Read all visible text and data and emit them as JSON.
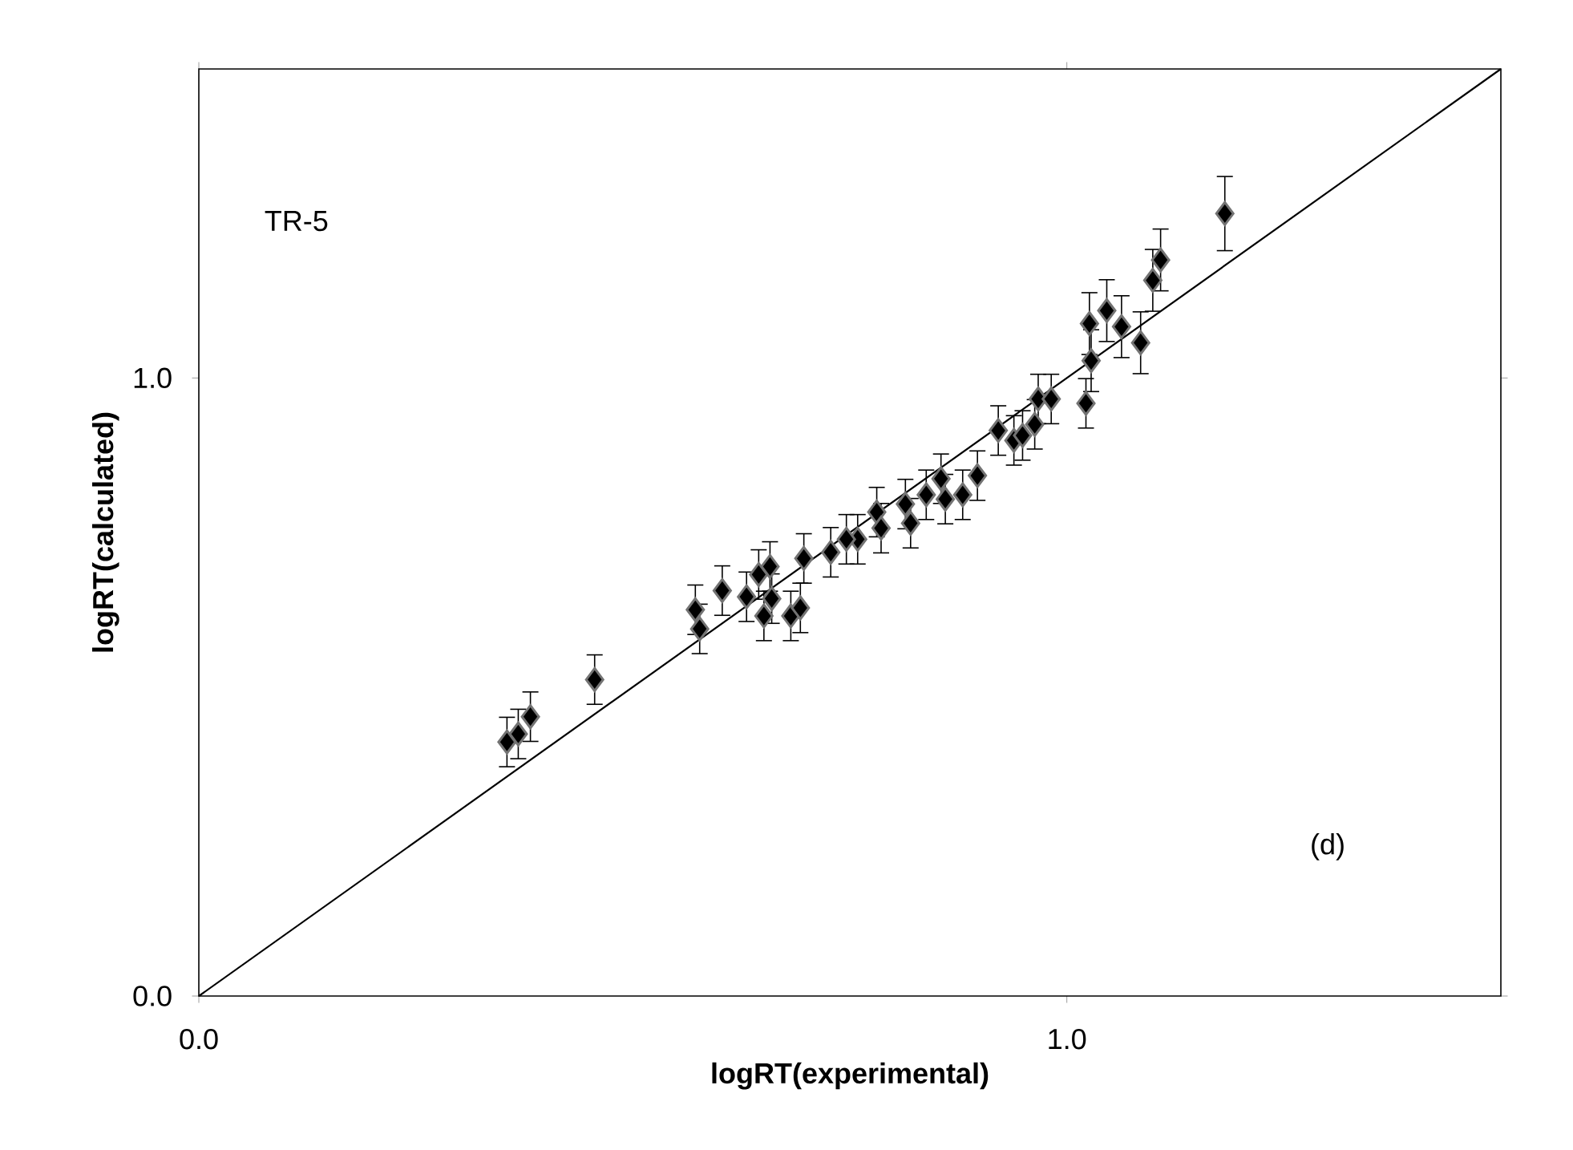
{
  "chart_data": {
    "type": "scatter",
    "xlabel": "logRT(experimental)",
    "ylabel": "logRT(calculated)",
    "annotations": [
      "TR-5",
      "(d)"
    ],
    "xlim": [
      0,
      1.5
    ],
    "ylim": [
      0,
      1.5
    ],
    "xticks": [
      {
        "value": 0,
        "label": "0.0"
      },
      {
        "value": 1,
        "label": "1.0"
      }
    ],
    "yticks": [
      {
        "value": 0,
        "label": "0.0"
      },
      {
        "value": 1,
        "label": "1.0"
      }
    ],
    "marker": "diamond",
    "series": [
      {
        "color": "#000000",
        "x": [
          0.355,
          0.368,
          0.382,
          0.456,
          0.572,
          0.577,
          0.603,
          0.631,
          0.645,
          0.658,
          0.651,
          0.66,
          0.682,
          0.693,
          0.697,
          0.728,
          0.759,
          0.746,
          0.781,
          0.786,
          0.814,
          0.82,
          0.838,
          0.855,
          0.86,
          0.88,
          0.897,
          0.921,
          0.939,
          0.949,
          0.963,
          0.967,
          0.982,
          1.022,
          1.028,
          1.026,
          1.046,
          1.063,
          1.085,
          1.099,
          1.108,
          1.182
        ],
        "values": [
          0.411,
          0.424,
          0.452,
          0.512,
          0.625,
          0.594,
          0.656,
          0.646,
          0.682,
          0.695,
          0.615,
          0.643,
          0.615,
          0.628,
          0.708,
          0.718,
          0.739,
          0.739,
          0.783,
          0.757,
          0.796,
          0.765,
          0.811,
          0.837,
          0.804,
          0.811,
          0.842,
          0.915,
          0.899,
          0.907,
          0.925,
          0.966,
          0.966,
          0.959,
          1.028,
          1.088,
          1.109,
          1.083,
          1.057,
          1.158,
          1.191,
          1.266
        ],
        "errors": [
          0.04,
          0.04,
          0.04,
          0.04,
          0.04,
          0.04,
          0.04,
          0.04,
          0.04,
          0.04,
          0.04,
          0.04,
          0.04,
          0.04,
          0.04,
          0.04,
          0.04,
          0.04,
          0.04,
          0.04,
          0.04,
          0.04,
          0.04,
          0.04,
          0.04,
          0.04,
          0.04,
          0.04,
          0.04,
          0.04,
          0.04,
          0.04,
          0.04,
          0.04,
          0.05,
          0.05,
          0.05,
          0.05,
          0.05,
          0.05,
          0.05,
          0.06
        ]
      },
      {
        "type": "line",
        "color": "#000000",
        "x": [
          0,
          1.5
        ],
        "values": [
          0,
          1.5
        ],
        "marker": "none",
        "line_style": "solid"
      }
    ]
  }
}
